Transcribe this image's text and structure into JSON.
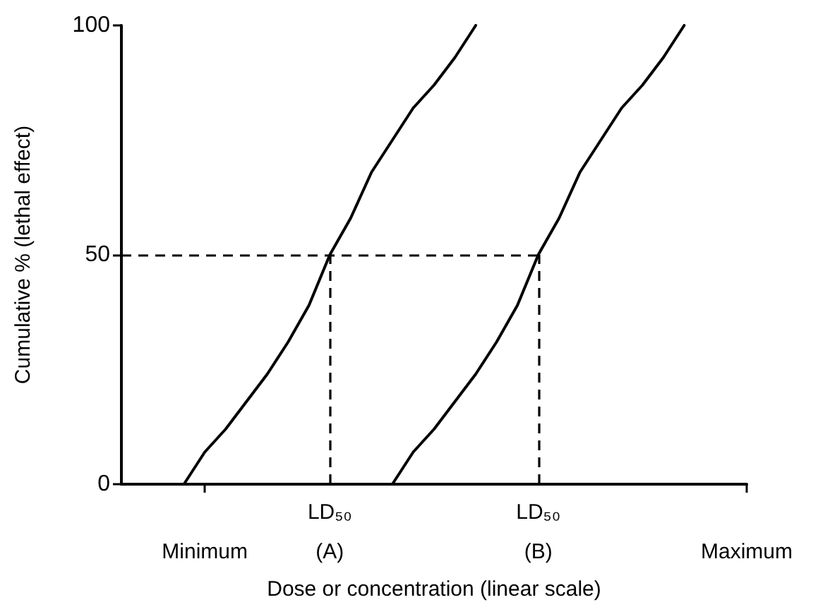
{
  "chart_data": {
    "type": "line",
    "xlabel": "Dose or concentration (linear scale)",
    "ylabel": "Cumulative % (lethal effect)",
    "categories": [
      null,
      null,
      null,
      null,
      "Minimum",
      null,
      null,
      null,
      null,
      null,
      "LD₅₀\n(A)",
      null,
      null,
      null,
      null,
      null,
      null,
      null,
      null,
      null,
      "LD₅₀\n(B)",
      null,
      null,
      null,
      null,
      null,
      null,
      null,
      null,
      null,
      "Maximum"
    ],
    "ylim": [
      0,
      100
    ],
    "yticks": [
      0,
      50,
      100
    ],
    "grid": false,
    "marker": "none",
    "line_style": "solid",
    "series": [
      {
        "color": "#000000",
        "values": [
          null,
          null,
          null,
          0,
          7,
          12,
          18,
          24,
          31,
          39,
          50,
          58,
          68,
          75,
          82,
          87,
          93,
          100,
          null,
          null,
          null,
          null,
          null,
          null,
          null,
          null,
          null,
          null,
          null,
          null,
          null
        ]
      },
      {
        "color": "#000000",
        "values": [
          null,
          null,
          null,
          null,
          null,
          null,
          null,
          null,
          null,
          null,
          null,
          null,
          null,
          0,
          7,
          12,
          18,
          24,
          31,
          39,
          50,
          58,
          68,
          75,
          82,
          87,
          93,
          100,
          null,
          null,
          null
        ]
      }
    ],
    "ref_lines": [
      {
        "axis": "y",
        "value": 50,
        "line_style": "dashed",
        "color": "#000000"
      },
      {
        "axis": "x",
        "value": "LD₅₀\n(A)",
        "line_style": "dashed",
        "color": "#000000"
      },
      {
        "axis": "x",
        "value": "LD₅₀\n(B)",
        "line_style": "dashed",
        "color": "#000000"
      }
    ]
  }
}
